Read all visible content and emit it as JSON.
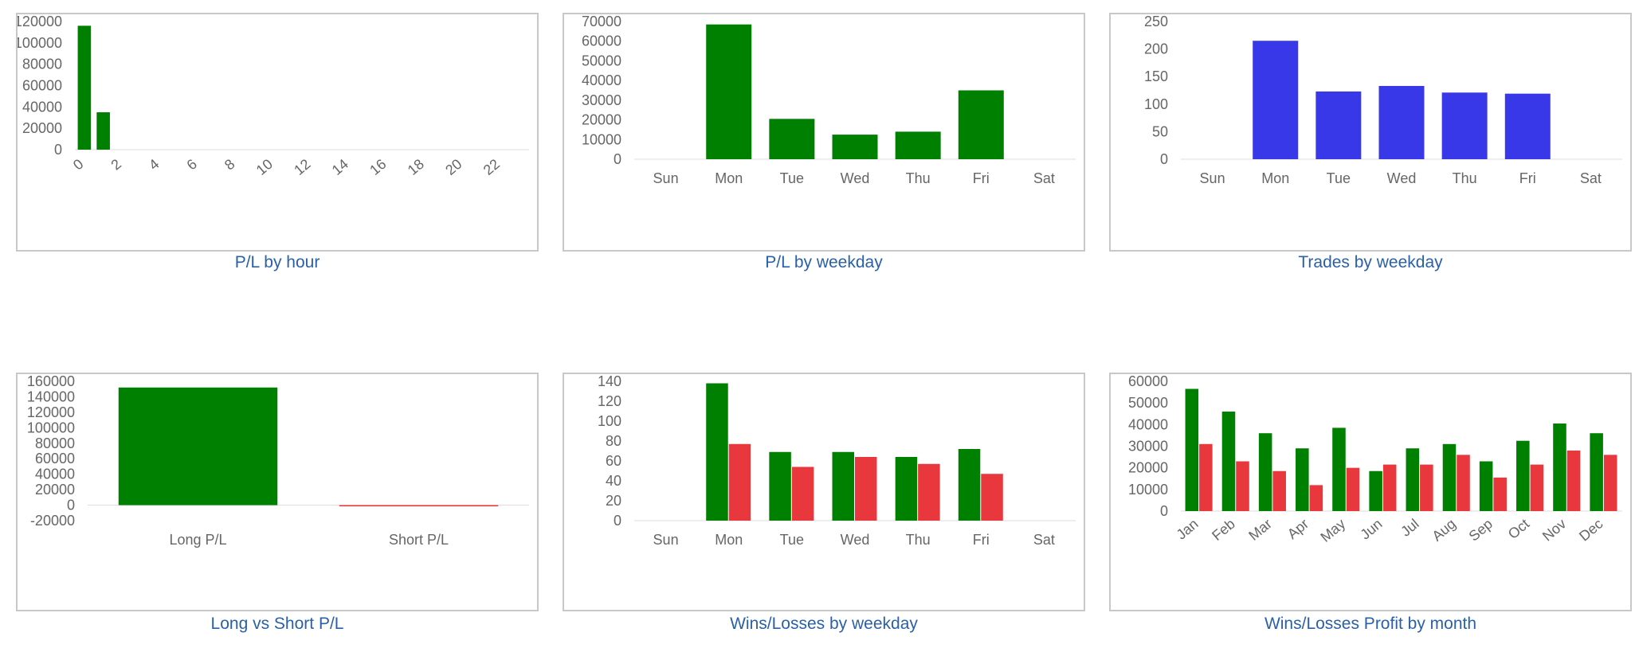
{
  "colors": {
    "profit": "#008000",
    "loss": "#e8383d",
    "trades": "#3838e8",
    "caption": "#2a60a8",
    "axis_text": "#666666"
  },
  "chart_data": [
    {
      "id": "p1",
      "type": "bar",
      "caption": "P/L by hour",
      "categories": [
        "0",
        "1",
        "2",
        "3",
        "4",
        "5",
        "6",
        "7",
        "8",
        "9",
        "10",
        "11",
        "12",
        "13",
        "14",
        "15",
        "16",
        "17",
        "18",
        "19",
        "20",
        "21",
        "22",
        "23"
      ],
      "tick_labels_shown": [
        "0",
        "2",
        "4",
        "6",
        "8",
        "10",
        "12",
        "14",
        "16",
        "18",
        "20",
        "22"
      ],
      "series": [
        {
          "color": "#008000",
          "values": [
            116000,
            35000,
            0,
            0,
            0,
            0,
            0,
            0,
            0,
            0,
            0,
            0,
            0,
            0,
            0,
            0,
            0,
            0,
            0,
            0,
            0,
            0,
            0,
            0
          ]
        }
      ],
      "ylim": [
        0,
        120000
      ],
      "yticks": [
        0,
        20000,
        40000,
        60000,
        80000,
        100000,
        120000
      ]
    },
    {
      "id": "p2",
      "type": "bar",
      "caption": "P/L by weekday",
      "categories": [
        "Sun",
        "Mon",
        "Tue",
        "Wed",
        "Thu",
        "Fri",
        "Sat"
      ],
      "series": [
        {
          "color": "#008000",
          "values": [
            0,
            68500,
            20500,
            12500,
            14000,
            35000,
            0
          ]
        }
      ],
      "ylim": [
        0,
        70000
      ],
      "yticks": [
        0,
        10000,
        20000,
        30000,
        40000,
        50000,
        60000,
        70000
      ]
    },
    {
      "id": "p3",
      "type": "bar",
      "caption": "Trades by weekday",
      "categories": [
        "Sun",
        "Mon",
        "Tue",
        "Wed",
        "Thu",
        "Fri",
        "Sat"
      ],
      "series": [
        {
          "color": "#3838e8",
          "values": [
            0,
            215,
            123,
            133,
            121,
            119,
            0
          ]
        }
      ],
      "ylim": [
        0,
        250
      ],
      "yticks": [
        0,
        50,
        100,
        150,
        200,
        250
      ]
    },
    {
      "id": "p4",
      "type": "bar",
      "caption": "Long vs Short P/L",
      "categories": [
        "Long P/L",
        "Short P/L"
      ],
      "series": [
        {
          "colors": [
            "#008000",
            "#e8383d"
          ],
          "values": [
            152000,
            -500
          ]
        }
      ],
      "ylim": [
        -20000,
        160000
      ],
      "yticks": [
        -20000,
        0,
        20000,
        40000,
        60000,
        80000,
        100000,
        120000,
        140000,
        160000
      ]
    },
    {
      "id": "p5",
      "type": "bar",
      "caption": "Wins/Losses by weekday",
      "categories": [
        "Sun",
        "Mon",
        "Tue",
        "Wed",
        "Thu",
        "Fri",
        "Sat"
      ],
      "series": [
        {
          "color": "#008000",
          "values": [
            0,
            138,
            69,
            69,
            64,
            72,
            0
          ]
        },
        {
          "color": "#e8383d",
          "values": [
            0,
            77,
            54,
            64,
            57,
            47,
            0
          ]
        }
      ],
      "ylim": [
        0,
        140
      ],
      "yticks": [
        0,
        20,
        40,
        60,
        80,
        100,
        120,
        140
      ]
    },
    {
      "id": "p6",
      "type": "bar",
      "caption": "Wins/Losses Profit by month",
      "categories": [
        "Jan",
        "Feb",
        "Mar",
        "Apr",
        "May",
        "Jun",
        "Jul",
        "Aug",
        "Sep",
        "Oct",
        "Nov",
        "Dec"
      ],
      "series": [
        {
          "color": "#008000",
          "values": [
            56500,
            46000,
            36000,
            29000,
            38500,
            18500,
            29000,
            31000,
            23000,
            32500,
            40500,
            36000
          ]
        },
        {
          "color": "#e8383d",
          "values": [
            31000,
            23000,
            18500,
            12000,
            20000,
            21500,
            21500,
            26000,
            15500,
            21500,
            28000,
            26000
          ]
        }
      ],
      "ylim": [
        0,
        60000
      ],
      "yticks": [
        0,
        10000,
        20000,
        30000,
        40000,
        50000,
        60000
      ]
    }
  ]
}
